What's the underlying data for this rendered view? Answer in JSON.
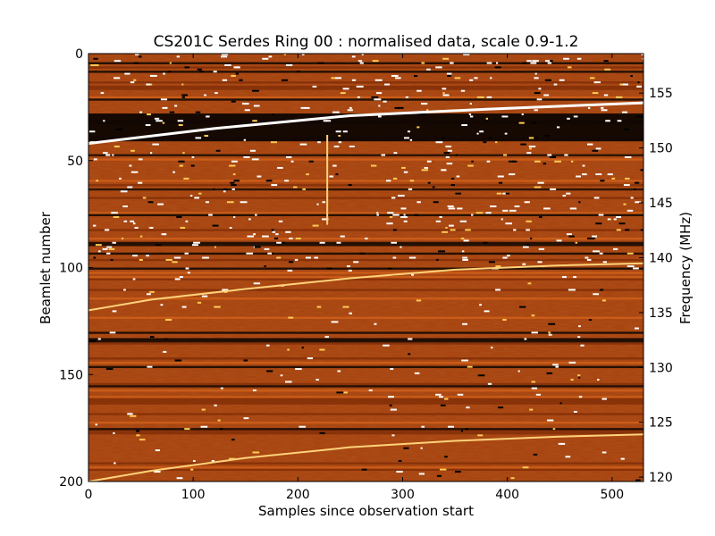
{
  "chart_data": {
    "type": "heatmap",
    "title": "CS201C Serdes Ring 00 : normalised data, scale 0.9-1.2",
    "xlabel": "Samples since observation start",
    "ylabel": "Beamlet number",
    "y2label": "Frequency (MHz)",
    "xlim": [
      0,
      530
    ],
    "ylim": [
      200,
      0
    ],
    "y2lim": [
      158.6,
      119.6
    ],
    "x_ticks": [
      0,
      100,
      200,
      300,
      400,
      500
    ],
    "y_ticks": [
      0,
      50,
      100,
      150,
      200
    ],
    "y2_ticks": [
      120,
      125,
      130,
      135,
      140,
      145,
      150,
      155
    ],
    "colormap": "afmhot",
    "color_scale": [
      0.9,
      1.2
    ],
    "colors": {
      "background": "#a63f0c",
      "dark_band": "#050201",
      "bright_band": "#ffffff",
      "line": "#ffd27a"
    },
    "dark_bands_beamlet": [
      {
        "from": 28,
        "to": 41
      },
      {
        "from": 4,
        "to": 5
      },
      {
        "from": 8,
        "to": 9
      },
      {
        "from": 21,
        "to": 22
      },
      {
        "from": 47,
        "to": 48
      },
      {
        "from": 63,
        "to": 64
      },
      {
        "from": 75,
        "to": 76
      },
      {
        "from": 88,
        "to": 90
      },
      {
        "from": 93,
        "to": 94
      },
      {
        "from": 100,
        "to": 101
      },
      {
        "from": 130,
        "to": 131
      },
      {
        "from": 133,
        "to": 135
      },
      {
        "from": 146,
        "to": 147
      },
      {
        "from": 155,
        "to": 156
      },
      {
        "from": 175,
        "to": 176
      }
    ],
    "sweep_lines": [
      {
        "x": [
          0,
          60,
          150,
          250,
          350,
          450,
          530
        ],
        "y": [
          120,
          115,
          110,
          105,
          101,
          99,
          98
        ]
      },
      {
        "x": [
          0,
          60,
          150,
          250,
          350,
          450,
          530
        ],
        "y": [
          200,
          195,
          189,
          184,
          181,
          179,
          178
        ]
      },
      {
        "x": [
          0,
          120,
          250,
          380,
          530
        ],
        "y": [
          42,
          35,
          29,
          26,
          23
        ]
      }
    ],
    "vertical_lines": [
      {
        "x": 228,
        "y_from": 38,
        "y_to": 80
      }
    ]
  }
}
